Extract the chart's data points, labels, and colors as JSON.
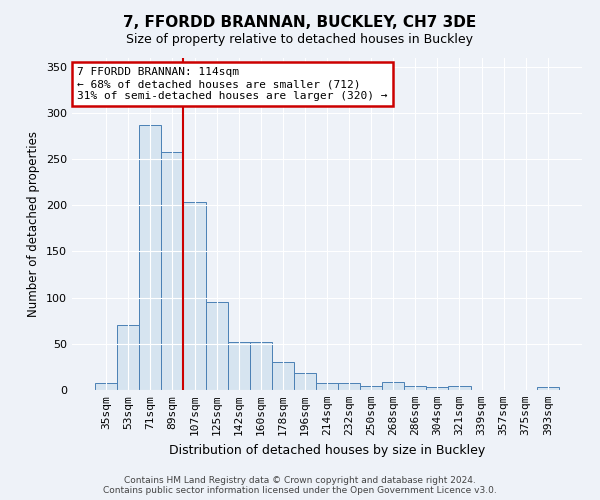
{
  "title": "7, FFORDD BRANNAN, BUCKLEY, CH7 3DE",
  "subtitle": "Size of property relative to detached houses in Buckley",
  "xlabel": "Distribution of detached houses by size in Buckley",
  "ylabel": "Number of detached properties",
  "bar_labels": [
    "35sqm",
    "53sqm",
    "71sqm",
    "89sqm",
    "107sqm",
    "125sqm",
    "142sqm",
    "160sqm",
    "178sqm",
    "196sqm",
    "214sqm",
    "232sqm",
    "250sqm",
    "268sqm",
    "286sqm",
    "304sqm",
    "321sqm",
    "339sqm",
    "357sqm",
    "375sqm",
    "393sqm"
  ],
  "bar_values": [
    8,
    70,
    287,
    258,
    204,
    95,
    52,
    52,
    30,
    18,
    8,
    8,
    4,
    9,
    4,
    3,
    4,
    0,
    0,
    0,
    3
  ],
  "bar_color": "#d6e4f0",
  "bar_edge_color": "#4a80b5",
  "vline_x": 3.5,
  "vline_color": "#cc0000",
  "annotation_line1": "7 FFORDD BRANNAN: 114sqm",
  "annotation_line2": "← 68% of detached houses are smaller (712)",
  "annotation_line3": "31% of semi-detached houses are larger (320) →",
  "annotation_box_color": "#ffffff",
  "annotation_box_edge": "#cc0000",
  "ylim": [
    0,
    360
  ],
  "yticks": [
    0,
    50,
    100,
    150,
    200,
    250,
    300,
    350
  ],
  "footer": "Contains HM Land Registry data © Crown copyright and database right 2024.\nContains public sector information licensed under the Open Government Licence v3.0.",
  "bg_color": "#eef2f8",
  "plot_bg_color": "#eef2f8",
  "grid_color": "#ffffff",
  "title_fontsize": 11,
  "subtitle_fontsize": 9,
  "ylabel_fontsize": 8.5,
  "xlabel_fontsize": 9,
  "tick_fontsize": 8,
  "annotation_fontsize": 8,
  "footer_fontsize": 6.5
}
